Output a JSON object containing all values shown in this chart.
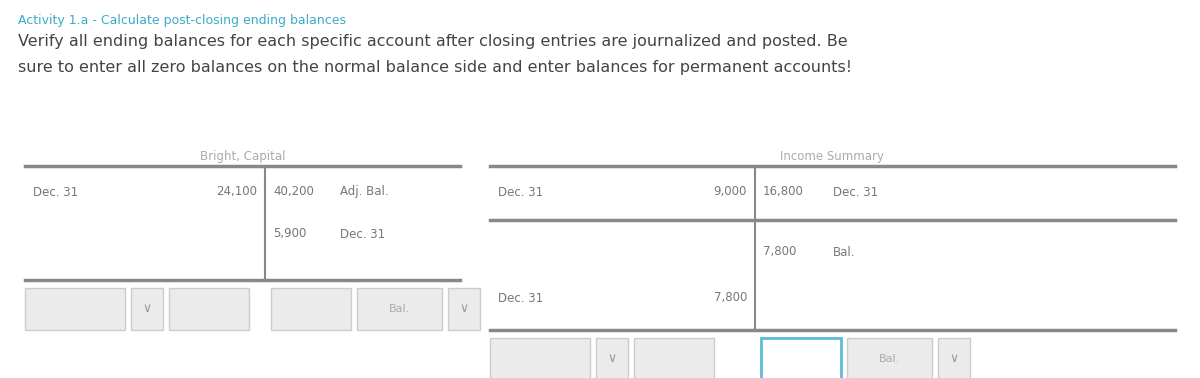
{
  "title": "Activity 1.a - Calculate post-closing ending balances",
  "title_color": "#3aabcc",
  "body_line1": "Verify all ending balances for each specific account after closing entries are journalized and posted. Be",
  "body_line2": "sure to enter all zero balances on the normal balance side and enter balances for permanent accounts!",
  "body_color": "#444444",
  "bg_color": "#ffffff",
  "ledger1_title": "Bright, Capital",
  "ledger2_title": "Income Summary",
  "line_color": "#888888",
  "text_color": "#777777",
  "title_label_color": "#aaaaaa",
  "input_box_color": "#ebebeb",
  "input_box_border": "#cccccc",
  "input_highlight_border": "#5bbcd6",
  "dropdown_color": "#ebebeb"
}
